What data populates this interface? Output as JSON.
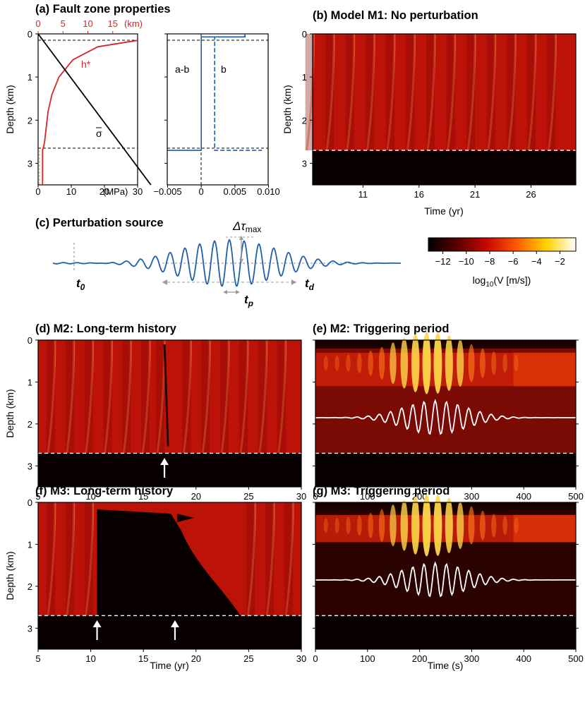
{
  "colors": {
    "red": "#d62728",
    "blue": "#1f5fa8",
    "dark": "#080000"
  },
  "panels": {
    "a": {
      "title": "(a) Fault zone properties"
    },
    "b": {
      "title": "(b) Model M1: No perturbation"
    },
    "c": {
      "title": "(c) Perturbation source"
    },
    "d": {
      "title": "(d) M2: Long-term history"
    },
    "e": {
      "title": "(e) M2: Triggering period"
    },
    "f": {
      "title": "(f) M3: Long-term history"
    },
    "g": {
      "title": "(g) M3: Triggering period"
    }
  },
  "axes": {
    "depth_label": "Depth (km)",
    "time_yr_label": "Time (yr)",
    "time_s_label": "Time (s)",
    "depth_ticks": [
      "0",
      "1",
      "2",
      "3"
    ],
    "mpa_unit": "(MPa)",
    "km_unit": "(km)",
    "mpa_ticks": [
      "0",
      "10",
      "20",
      "30"
    ],
    "km_ticks": [
      "0",
      "5",
      "10",
      "15"
    ],
    "ab_ticks": [
      "−0.005",
      "0",
      "0.005",
      "0.010"
    ],
    "b_time_ticks": [
      "11",
      "16",
      "21",
      "26"
    ],
    "yr_ticks": [
      "5",
      "10",
      "15",
      "20",
      "25",
      "30"
    ],
    "s_ticks": [
      "0",
      "100",
      "200",
      "300",
      "400",
      "500"
    ]
  },
  "annotations": {
    "h_star": "h*",
    "sigma": "σ",
    "a_minus_b": "a-b",
    "b": "b",
    "dtau": "Δτ",
    "dtau_sub": "max",
    "t0": "t",
    "t0_sub": "0",
    "tp": "t",
    "tp_sub": "p",
    "td": "t",
    "td_sub": "d"
  },
  "colorbar": {
    "label_pre": "log",
    "label_sub": "10",
    "label_post": "(V [m/s])",
    "ticks": [
      "−12",
      "−10",
      "−8",
      "−6",
      "−4",
      "−2"
    ]
  },
  "chart_data": [
    {
      "panel": "a-left",
      "type": "line",
      "ylabel": "Depth (km)",
      "xlim_bottom": [
        0,
        30
      ],
      "xlim_top": [
        0,
        20
      ],
      "ylim": [
        3.5,
        0
      ],
      "series": [
        {
          "name": "h*",
          "axis": "top",
          "x": [
            20,
            12,
            7,
            4.2,
            2.8,
            2.0,
            1.6,
            1.3,
            1.1,
            0.9,
            0.9,
            0.9
          ],
          "y": [
            0.15,
            0.3,
            0.6,
            1.0,
            1.4,
            1.8,
            2.2,
            2.5,
            2.62,
            2.68,
            3.0,
            3.5
          ]
        },
        {
          "name": "σ",
          "axis": "bottom",
          "x": [
            0,
            34
          ],
          "y": [
            0,
            3.5
          ]
        }
      ],
      "reference_lines_depth": [
        0.12,
        2.7
      ]
    },
    {
      "panel": "a-right",
      "type": "line",
      "xlim": [
        -0.005,
        0.01
      ],
      "ylim": [
        3.5,
        0
      ],
      "series": [
        {
          "name": "a-b",
          "x": [
            0.0065,
            0.0065,
            0.0,
            0.0,
            0.0,
            -0.005
          ],
          "y": [
            0.0,
            0.07,
            0.07,
            0.12,
            2.7,
            2.7
          ]
        },
        {
          "name": "b",
          "x": [
            0.0065,
            0.0065,
            0.002,
            0.002,
            0.002,
            0.009
          ],
          "y": [
            0.0,
            0.07,
            0.07,
            0.12,
            2.7,
            2.7
          ]
        }
      ]
    },
    {
      "panel": "b",
      "type": "heatmap",
      "xlabel": "Time (yr)",
      "ylabel": "Depth (km)",
      "xlim": [
        6.5,
        30
      ],
      "ylim": [
        3.5,
        0
      ],
      "seismogenic_bottom": 2.7,
      "cycle_times": [
        6.6,
        8.4,
        10.2,
        12.0,
        13.8,
        15.6,
        17.4,
        19.2,
        21.0,
        22.8,
        24.6,
        26.4,
        28.2
      ]
    },
    {
      "panel": "d",
      "type": "heatmap",
      "ylabel": "Depth (km)",
      "xlim": [
        5,
        30
      ],
      "ylim": [
        3.5,
        0
      ],
      "seismogenic_bottom": 2.7,
      "arrow_time": 17,
      "cycle_times": [
        6.6,
        8.4,
        10.2,
        12.0,
        13.8,
        15.6,
        17.0,
        19.5,
        21.3,
        23.1,
        24.9,
        26.7,
        28.5
      ]
    },
    {
      "panel": "e",
      "type": "heatmap",
      "ylim": [
        3.5,
        0
      ],
      "xlim": [
        0,
        500
      ],
      "seismogenic_bottom": 2.7,
      "wave_center_depth": 1.85,
      "pulse_times": [
        20,
        45,
        70,
        95,
        118,
        140,
        160,
        180,
        200,
        218,
        238,
        258,
        278,
        298,
        318,
        340,
        362,
        385
      ]
    },
    {
      "panel": "f",
      "type": "heatmap",
      "xlabel": "Time (yr)",
      "ylabel": "Depth (km)",
      "xlim": [
        5,
        30
      ],
      "ylim": [
        3.5,
        0
      ],
      "seismogenic_bottom": 2.7,
      "arrow_times": [
        10.6,
        18.0
      ]
    },
    {
      "panel": "g",
      "type": "heatmap",
      "xlabel": "Time (s)",
      "xlim": [
        0,
        500
      ],
      "ylim": [
        3.5,
        0
      ],
      "seismogenic_bottom": 2.7,
      "wave_center_depth": 1.85
    }
  ]
}
